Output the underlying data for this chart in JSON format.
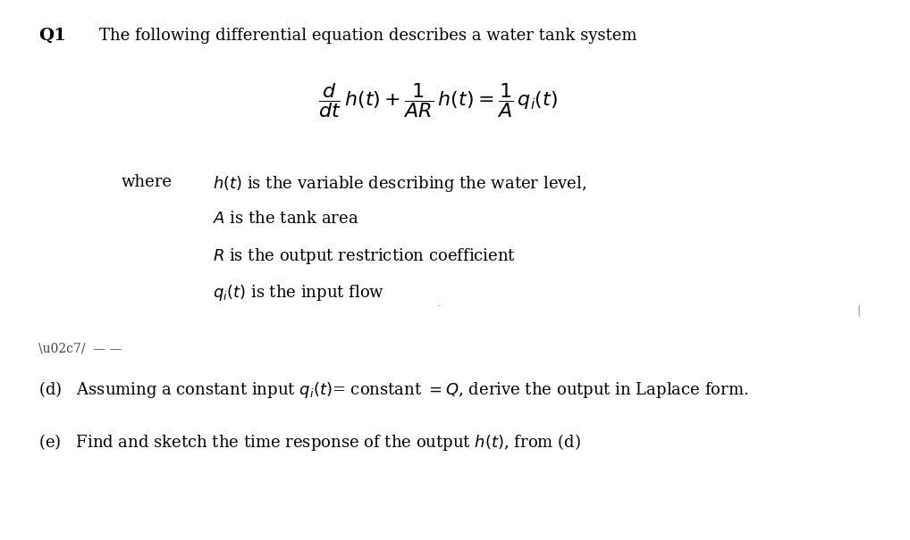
{
  "background_color": "#ffffff",
  "figsize": [
    10.18,
    6.05
  ],
  "dpi": 100,
  "title_q1": "Q1",
  "title_text": "The following differential equation describes a water tank system",
  "equation": "$\\dfrac{d}{dt}\\,h(t)+\\dfrac{1}{AR}\\,h(t)=\\dfrac{1}{A}\\,q_i(t)$",
  "where_label": "where",
  "bullet1": "$h(t)$ is the variable describing the water level,",
  "bullet2": "$A$ is the tank area",
  "bullet3": "$R$ is the output restriction coefficient",
  "bullet4": "$q_i(t)$ is the input flow",
  "part_d": "(d)   Assuming a constant input $q_i(t)$= constant $= Q$, derive the output in Laplace form.",
  "part_e": "(e)   Find and sketch the time response of the output $h(t)$, from (d)",
  "small_marks": "\\u02c7/  — —",
  "font_size_main": 13,
  "font_size_eq": 14,
  "font_size_q1": 14
}
